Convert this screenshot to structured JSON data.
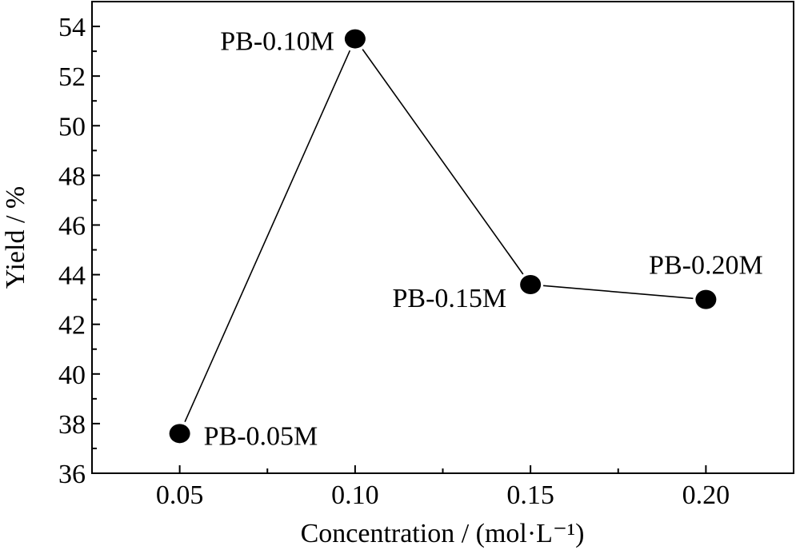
{
  "chart_data": {
    "type": "scatter",
    "xlabel": "Concentration / (mol·L⁻¹)",
    "ylabel": "Yield / %",
    "xlim": [
      0.025,
      0.225
    ],
    "ylim": [
      36,
      55
    ],
    "x_ticks": [
      "0.05",
      "0.10",
      "0.15",
      "0.20"
    ],
    "y_ticks": [
      "36",
      "38",
      "40",
      "42",
      "44",
      "46",
      "48",
      "50",
      "52",
      "54"
    ],
    "grid": false,
    "points": [
      {
        "x": 0.05,
        "y": 37.6,
        "label": "PB-0.05M"
      },
      {
        "x": 0.1,
        "y": 53.5,
        "label": "PB-0.10M"
      },
      {
        "x": 0.15,
        "y": 43.6,
        "label": "PB-0.15M"
      },
      {
        "x": 0.2,
        "y": 43.0,
        "label": "PB-0.20M"
      }
    ],
    "connected": true,
    "marker_color": "#000000",
    "line_color": "#000000"
  }
}
